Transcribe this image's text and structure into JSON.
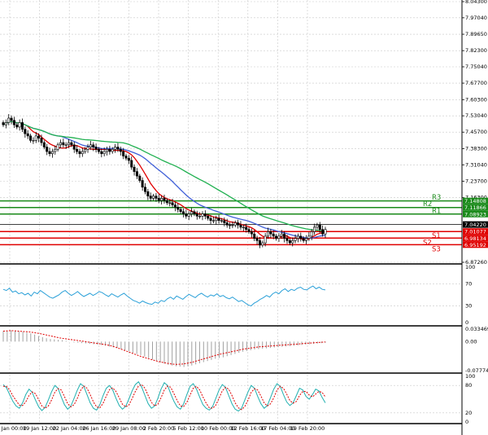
{
  "colors": {
    "grid": "#c8c8c8",
    "candle": "#000000",
    "ma_fast": "#e00000",
    "ma_mid": "#4060d8",
    "ma_slow": "#20b050",
    "resistance": "#1a8a1a",
    "support": "#e00000",
    "current": "#000000",
    "rsi": "#2aa0d8",
    "macd_hist": "#a0a0a0",
    "macd_signal": "#e00000",
    "stoch_main": "#20b0b0",
    "stoch_signal": "#e00000"
  },
  "chart_data": [
    {
      "type": "candlestick",
      "title": "",
      "ylim": [
        6.8726,
        8.043
      ],
      "y_ticks": [
        "8.04300",
        "7.97040",
        "7.89650",
        "7.82300",
        "7.75040",
        "7.67700",
        "7.60300",
        "7.53040",
        "7.45700",
        "7.38300",
        "7.31040",
        "7.23700",
        "7.16300",
        "6.87260"
      ],
      "x_ticks": [
        "15 Jan 00:00",
        "19 Jan 12:00",
        "22 Jan 04:00",
        "26 Jan 16:00",
        "29 Jan 08:00",
        "2 Feb 20:00",
        "5 Feb 12:00",
        "10 Feb 00:00",
        "12 Feb 16:00",
        "17 Feb 04:00",
        "19 Feb 20:00"
      ],
      "grid": true,
      "close": [
        7.49,
        7.5,
        7.52,
        7.51,
        7.49,
        7.48,
        7.5,
        7.47,
        7.45,
        7.44,
        7.42,
        7.42,
        7.44,
        7.43,
        7.41,
        7.39,
        7.37,
        7.36,
        7.37,
        7.38,
        7.4,
        7.41,
        7.4,
        7.4,
        7.41,
        7.4,
        7.38,
        7.37,
        7.36,
        7.37,
        7.38,
        7.39,
        7.4,
        7.39,
        7.38,
        7.37,
        7.36,
        7.37,
        7.38,
        7.37,
        7.38,
        7.39,
        7.38,
        7.37,
        7.35,
        7.34,
        7.33,
        7.3,
        7.28,
        7.26,
        7.24,
        7.21,
        7.19,
        7.17,
        7.16,
        7.17,
        7.16,
        7.15,
        7.16,
        7.15,
        7.14,
        7.14,
        7.13,
        7.12,
        7.11,
        7.1,
        7.09,
        7.08,
        7.09,
        7.1,
        7.09,
        7.08,
        7.08,
        7.09,
        7.08,
        7.07,
        7.06,
        7.06,
        7.07,
        7.06,
        7.06,
        7.05,
        7.04,
        7.04,
        7.04,
        7.05,
        7.04,
        7.03,
        7.03,
        7.02,
        7.01,
        7.0,
        6.98,
        6.97,
        6.95,
        6.96,
        6.99,
        7.01,
        7.0,
        6.99,
        6.98,
        6.99,
        7.0,
        6.98,
        6.97,
        6.96,
        6.97,
        6.98,
        6.99,
        6.98,
        6.97,
        6.98,
        6.99,
        7.01,
        7.03,
        7.04,
        7.02,
        7.0,
        7.02
      ],
      "price_levels": [
        {
          "label": "R3",
          "value": 7.14808,
          "tag": "7.14808"
        },
        {
          "label": "R2",
          "value": 7.11866,
          "tag": "7.11866"
        },
        {
          "label": "R1",
          "value": 7.08923,
          "tag": "7.08923"
        },
        {
          "label": "S1",
          "value": 7.01077,
          "tag": "7.01077"
        },
        {
          "label": "S2",
          "value": 6.98134,
          "tag": "6.98134"
        },
        {
          "label": "S3",
          "value": 6.95192,
          "tag": "6.95192"
        }
      ],
      "current_price": {
        "value": 7.0422,
        "tag": "7.04220"
      }
    },
    {
      "type": "line",
      "ylim": [
        0,
        100
      ],
      "y_ticks": [
        "100",
        "70",
        "30",
        "0"
      ],
      "values": [
        60,
        58,
        62,
        55,
        57,
        52,
        54,
        50,
        53,
        48,
        55,
        52,
        58,
        54,
        50,
        46,
        44,
        47,
        50,
        55,
        58,
        53,
        49,
        52,
        56,
        51,
        47,
        50,
        53,
        49,
        52,
        56,
        54,
        50,
        47,
        52,
        49,
        46,
        50,
        53,
        48,
        44,
        40,
        38,
        35,
        39,
        36,
        34,
        33,
        37,
        35,
        40,
        38,
        43,
        46,
        42,
        48,
        45,
        42,
        47,
        51,
        48,
        45,
        50,
        53,
        49,
        46,
        50,
        48,
        52,
        47,
        49,
        45,
        43,
        46,
        42,
        38,
        40,
        36,
        32,
        30,
        35,
        38,
        42,
        45,
        49,
        46,
        52,
        55,
        52,
        58,
        61,
        56,
        60,
        58,
        62,
        64,
        60,
        59,
        63,
        66,
        61,
        64,
        60,
        59
      ]
    },
    {
      "type": "bar",
      "ylim": [
        -0.077746,
        0.033469
      ],
      "y_ticks": [
        "0.033469",
        "0.00",
        "-0.077746"
      ],
      "values": [
        0.028,
        0.029,
        0.03,
        0.028,
        0.027,
        0.026,
        0.024,
        0.022,
        0.019,
        0.015,
        0.012,
        0.009,
        0.007,
        0.006,
        0.005,
        0.004,
        0.002,
        0.0,
        -0.002,
        -0.003,
        -0.004,
        -0.005,
        -0.006,
        -0.007,
        -0.008,
        -0.009,
        -0.011,
        -0.013,
        -0.015,
        -0.017,
        -0.02,
        -0.023,
        -0.026,
        -0.03,
        -0.033,
        -0.036,
        -0.04,
        -0.044,
        -0.048,
        -0.052,
        -0.056,
        -0.059,
        -0.062,
        -0.064,
        -0.066,
        -0.067,
        -0.068,
        -0.066,
        -0.064,
        -0.061,
        -0.058,
        -0.055,
        -0.052,
        -0.049,
        -0.046,
        -0.044,
        -0.042,
        -0.039,
        -0.036,
        -0.033,
        -0.03,
        -0.027,
        -0.025,
        -0.023,
        -0.021,
        -0.02,
        -0.019,
        -0.018,
        -0.017,
        -0.016,
        -0.015,
        -0.014,
        -0.013,
        -0.012,
        -0.011,
        -0.01,
        -0.009,
        -0.008,
        -0.007,
        -0.006,
        -0.005,
        -0.004,
        -0.003
      ],
      "signal": [
        0.028,
        0.029,
        0.029,
        0.028,
        0.027,
        0.026,
        0.024,
        0.022,
        0.019,
        0.016,
        0.013,
        0.01,
        0.008,
        0.006,
        0.004,
        0.002,
        0.0,
        -0.002,
        -0.004,
        -0.006,
        -0.008,
        -0.011,
        -0.015,
        -0.02,
        -0.025,
        -0.03,
        -0.035,
        -0.04,
        -0.044,
        -0.048,
        -0.052,
        -0.055,
        -0.058,
        -0.06,
        -0.061,
        -0.06,
        -0.058,
        -0.055,
        -0.051,
        -0.047,
        -0.043,
        -0.039,
        -0.035,
        -0.032,
        -0.029,
        -0.026,
        -0.023,
        -0.02,
        -0.018,
        -0.016,
        -0.014,
        -0.013,
        -0.012,
        -0.011,
        -0.01,
        -0.009,
        -0.008,
        -0.007,
        -0.006,
        -0.005,
        -0.004,
        -0.003,
        -0.002,
        -0.001
      ]
    },
    {
      "type": "line",
      "ylim": [
        0,
        100
      ],
      "y_ticks": [
        "100",
        "80",
        "20",
        "0"
      ],
      "series": [
        {
          "values": [
            82,
            75,
            60,
            45,
            35,
            30,
            42,
            60,
            72,
            65,
            48,
            33,
            25,
            32,
            48,
            66,
            80,
            74,
            55,
            38,
            28,
            35,
            52,
            70,
            84,
            78,
            60,
            42,
            30,
            26,
            38,
            58,
            74,
            80,
            70,
            52,
            36,
            28,
            34,
            50,
            68,
            82,
            88,
            76,
            58,
            40,
            30,
            35,
            52,
            72,
            86,
            80,
            62,
            45,
            33,
            28,
            40,
            60,
            78,
            84,
            72,
            54,
            38,
            30,
            26,
            34,
            52,
            70,
            82,
            76,
            58,
            40,
            28,
            24,
            30,
            48,
            66,
            80,
            74,
            56,
            40,
            30,
            36,
            54,
            72,
            84,
            78,
            60,
            44,
            36,
            42,
            58,
            74,
            70,
            56,
            50,
            60,
            72,
            68,
            54,
            42
          ]
        },
        {
          "values": [
            78,
            78,
            70,
            57,
            47,
            37,
            36,
            44,
            58,
            66,
            62,
            49,
            35,
            30,
            35,
            48,
            65,
            73,
            70,
            56,
            40,
            33,
            38,
            52,
            69,
            79,
            74,
            60,
            44,
            33,
            31,
            41,
            57,
            71,
            75,
            67,
            53,
            39,
            33,
            37,
            51,
            67,
            79,
            82,
            74,
            58,
            43,
            35,
            39,
            53,
            70,
            79,
            76,
            62,
            47,
            35,
            34,
            43,
            59,
            74,
            78,
            70,
            55,
            41,
            31,
            30,
            37,
            52,
            68,
            76,
            72,
            58,
            42,
            31,
            27,
            34,
            48,
            65,
            73,
            70,
            57,
            42,
            35,
            40,
            53,
            70,
            78,
            74,
            61,
            47,
            41,
            45,
            58,
            67,
            67,
            59,
            55,
            61,
            67,
            65,
            55
          ]
        }
      ]
    }
  ]
}
